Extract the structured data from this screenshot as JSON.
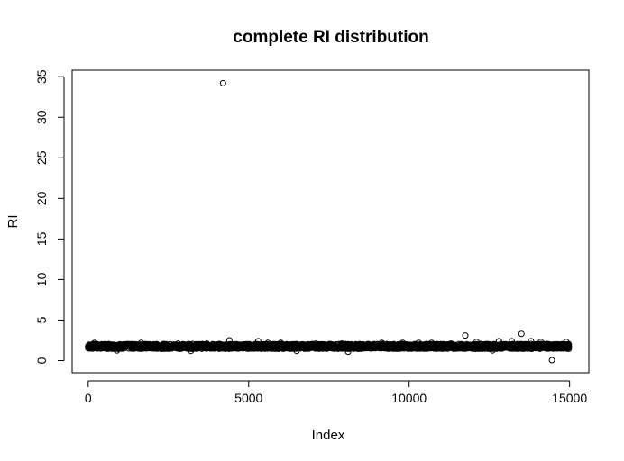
{
  "chart_data": {
    "type": "scatter",
    "title": "complete RI distribution",
    "xlabel": "Index",
    "ylabel": "RI",
    "xlim": [
      -500,
      15600
    ],
    "ylim": [
      -1.5,
      35.8
    ],
    "xticks": [
      0,
      5000,
      10000,
      15000
    ],
    "xtick_labels": [
      "0",
      "5000",
      "10000",
      "15000"
    ],
    "yticks": [
      0,
      5,
      10,
      15,
      20,
      25,
      30,
      35
    ],
    "ytick_labels": [
      "0",
      "5",
      "10",
      "15",
      "20",
      "25",
      "30",
      "35"
    ],
    "marker": "open-circle",
    "grid": false,
    "series_count": 15000,
    "bulk_band": {
      "x": [
        1,
        15000
      ],
      "y_min": 1.3,
      "y_max": 2.2
    },
    "points": [
      {
        "x": 4200,
        "y": 34.2
      },
      {
        "x": 11750,
        "y": 3.1
      },
      {
        "x": 13500,
        "y": 3.3
      },
      {
        "x": 14450,
        "y": 0.05
      },
      {
        "x": 8100,
        "y": 1.1
      },
      {
        "x": 4400,
        "y": 2.5
      },
      {
        "x": 5300,
        "y": 2.4
      },
      {
        "x": 200,
        "y": 2.2
      },
      {
        "x": 1650,
        "y": 2.2
      },
      {
        "x": 9150,
        "y": 2.2
      },
      {
        "x": 12800,
        "y": 2.4
      },
      {
        "x": 13200,
        "y": 2.4
      },
      {
        "x": 13800,
        "y": 2.4
      },
      {
        "x": 14100,
        "y": 2.3
      },
      {
        "x": 14900,
        "y": 2.3
      },
      {
        "x": 12100,
        "y": 2.3
      },
      {
        "x": 9800,
        "y": 2.2
      },
      {
        "x": 10300,
        "y": 2.2
      },
      {
        "x": 10700,
        "y": 2.2
      },
      {
        "x": 6000,
        "y": 2.2
      },
      {
        "x": 5600,
        "y": 2.2
      },
      {
        "x": 3700,
        "y": 2.1
      },
      {
        "x": 2800,
        "y": 2.1
      },
      {
        "x": 7100,
        "y": 2.1
      },
      {
        "x": 7900,
        "y": 2.1
      },
      {
        "x": 11300,
        "y": 2.1
      },
      {
        "x": 3200,
        "y": 1.2
      },
      {
        "x": 6500,
        "y": 1.2
      },
      {
        "x": 12600,
        "y": 1.25
      },
      {
        "x": 900,
        "y": 1.25
      }
    ]
  }
}
